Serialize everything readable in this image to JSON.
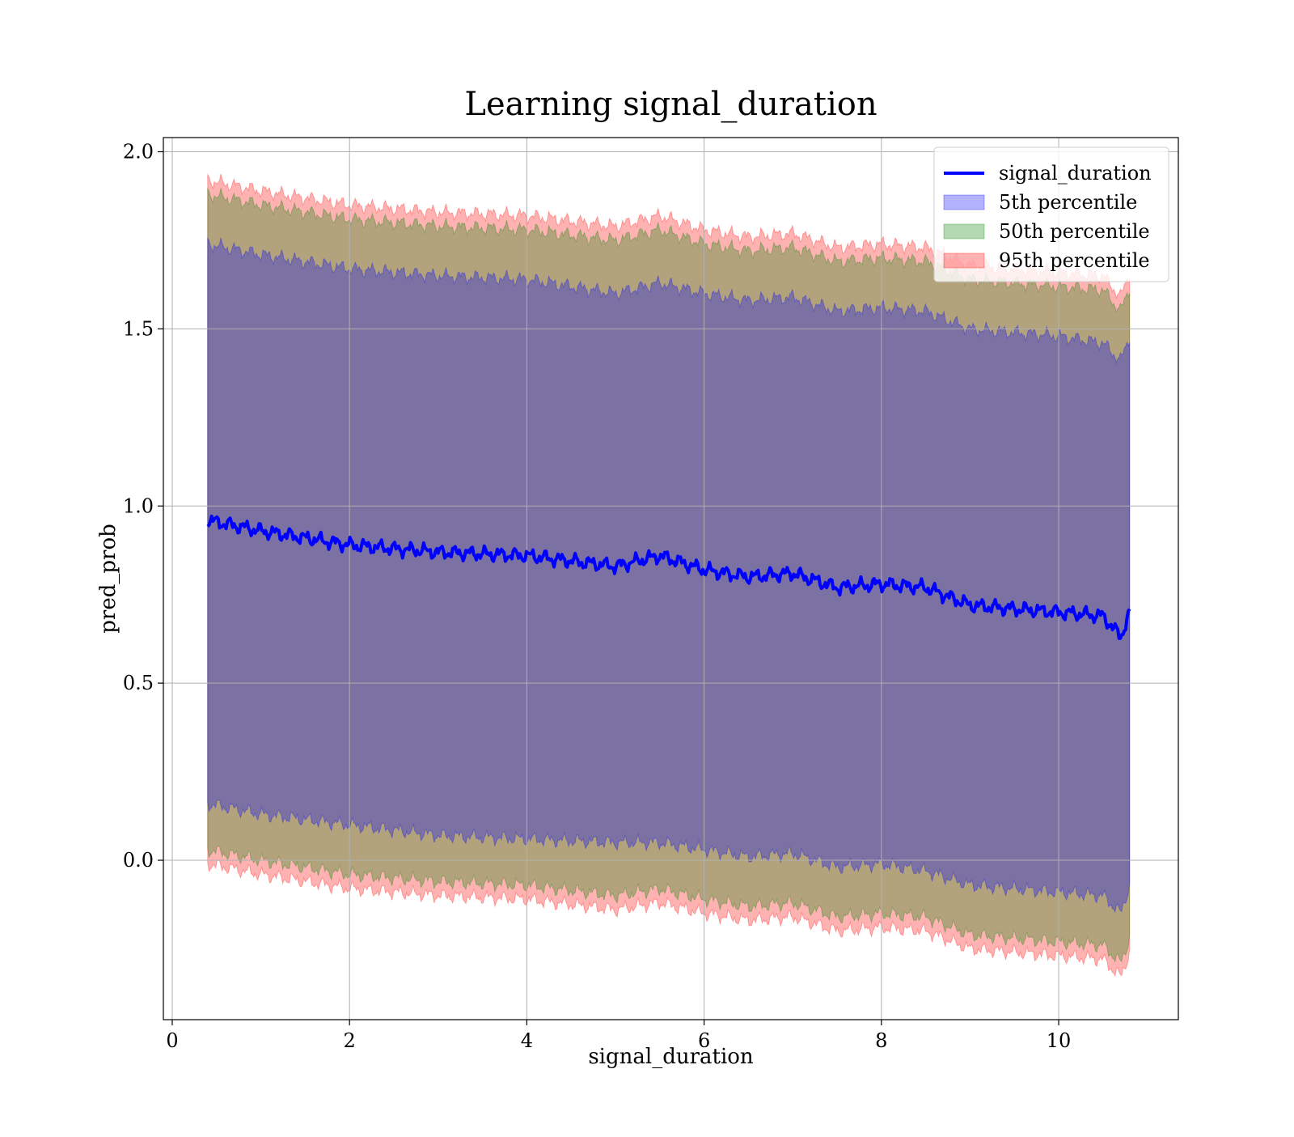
{
  "chart_data": {
    "type": "area",
    "title": "Learning signal_duration",
    "xlabel": "signal_duration",
    "ylabel": "pred_prob",
    "xlim": [
      -0.1,
      11.35
    ],
    "ylim": [
      -0.45,
      2.04
    ],
    "xticks": [
      0,
      2,
      4,
      6,
      8,
      10
    ],
    "yticks": [
      0.0,
      0.5,
      1.0,
      1.5,
      2.0
    ],
    "xtick_labels": [
      "0",
      "2",
      "4",
      "6",
      "8",
      "10"
    ],
    "ytick_labels": [
      "0.0",
      "0.5",
      "1.0",
      "1.5",
      "2.0"
    ],
    "grid": true,
    "legend_position": "top-right",
    "x": [
      0.4,
      1.0,
      2.0,
      3.0,
      4.0,
      5.0,
      5.5,
      6.0,
      6.5,
      7.0,
      7.5,
      8.0,
      8.5,
      9.0,
      9.5,
      10.0,
      10.5,
      10.7,
      10.8
    ],
    "series": [
      {
        "name": "signal_duration",
        "kind": "line",
        "color": "#0000ff",
        "values": [
          0.96,
          0.93,
          0.89,
          0.87,
          0.86,
          0.83,
          0.86,
          0.82,
          0.8,
          0.81,
          0.77,
          0.78,
          0.77,
          0.72,
          0.71,
          0.7,
          0.69,
          0.63,
          0.7
        ]
      },
      {
        "name": "5th percentile",
        "kind": "band",
        "color": "#0000ff",
        "lower": [
          0.16,
          0.13,
          0.1,
          0.07,
          0.06,
          0.05,
          0.05,
          0.03,
          0.01,
          0.02,
          -0.02,
          -0.01,
          -0.03,
          -0.07,
          -0.08,
          -0.09,
          -0.1,
          -0.15,
          -0.07
        ],
        "upper": [
          1.74,
          1.71,
          1.67,
          1.65,
          1.64,
          1.6,
          1.63,
          1.6,
          1.58,
          1.59,
          1.55,
          1.56,
          1.55,
          1.5,
          1.49,
          1.48,
          1.46,
          1.41,
          1.48
        ]
      },
      {
        "name": "50th percentile",
        "kind": "band",
        "color": "#008000",
        "lower": [
          0.03,
          0.0,
          -0.04,
          -0.06,
          -0.07,
          -0.1,
          -0.08,
          -0.11,
          -0.13,
          -0.12,
          -0.16,
          -0.15,
          -0.16,
          -0.21,
          -0.22,
          -0.23,
          -0.24,
          -0.29,
          -0.22
        ],
        "upper": [
          1.88,
          1.85,
          1.81,
          1.79,
          1.78,
          1.75,
          1.78,
          1.74,
          1.72,
          1.73,
          1.69,
          1.7,
          1.69,
          1.64,
          1.63,
          1.62,
          1.61,
          1.55,
          1.62
        ]
      },
      {
        "name": "95th percentile",
        "kind": "band",
        "color": "#ff0000",
        "lower": [
          -0.01,
          -0.04,
          -0.08,
          -0.1,
          -0.11,
          -0.14,
          -0.12,
          -0.15,
          -0.17,
          -0.16,
          -0.2,
          -0.19,
          -0.2,
          -0.25,
          -0.26,
          -0.27,
          -0.28,
          -0.33,
          -0.26
        ],
        "upper": [
          1.92,
          1.89,
          1.85,
          1.83,
          1.82,
          1.79,
          1.82,
          1.78,
          1.76,
          1.77,
          1.73,
          1.74,
          1.73,
          1.68,
          1.67,
          1.66,
          1.65,
          1.59,
          1.66
        ]
      }
    ]
  }
}
